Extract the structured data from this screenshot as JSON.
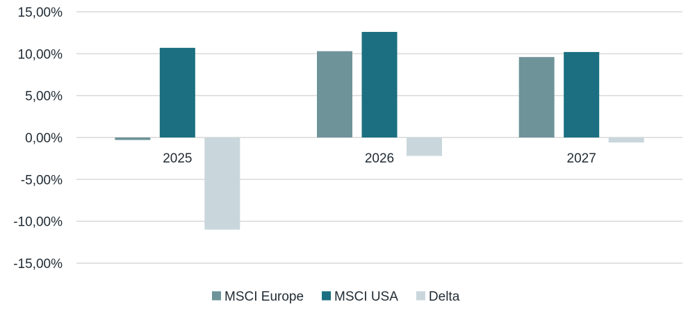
{
  "chart_data": {
    "type": "bar",
    "categories": [
      "2025",
      "2026",
      "2027"
    ],
    "series": [
      {
        "name": "MSCI Europe",
        "values": [
          -0.3,
          10.3,
          9.6
        ],
        "color": "#6e949a"
      },
      {
        "name": "MSCI USA",
        "values": [
          10.7,
          12.6,
          10.2
        ],
        "color": "#1b6f80"
      },
      {
        "name": "Delta",
        "values": [
          -11.0,
          -2.2,
          -0.6
        ],
        "color": "#c9d7dc"
      }
    ],
    "yticks": [
      15,
      10,
      5,
      0,
      -5,
      -10,
      -15
    ],
    "ytick_labels": [
      "15,00%",
      "10,00%",
      "5,00%",
      "0,00%",
      "-5,00%",
      "-10,00%",
      "-15,00%"
    ],
    "ylim": [
      -15,
      15
    ],
    "grid": true,
    "legend_position": "bottom",
    "title": "",
    "xlabel": "",
    "ylabel": ""
  }
}
